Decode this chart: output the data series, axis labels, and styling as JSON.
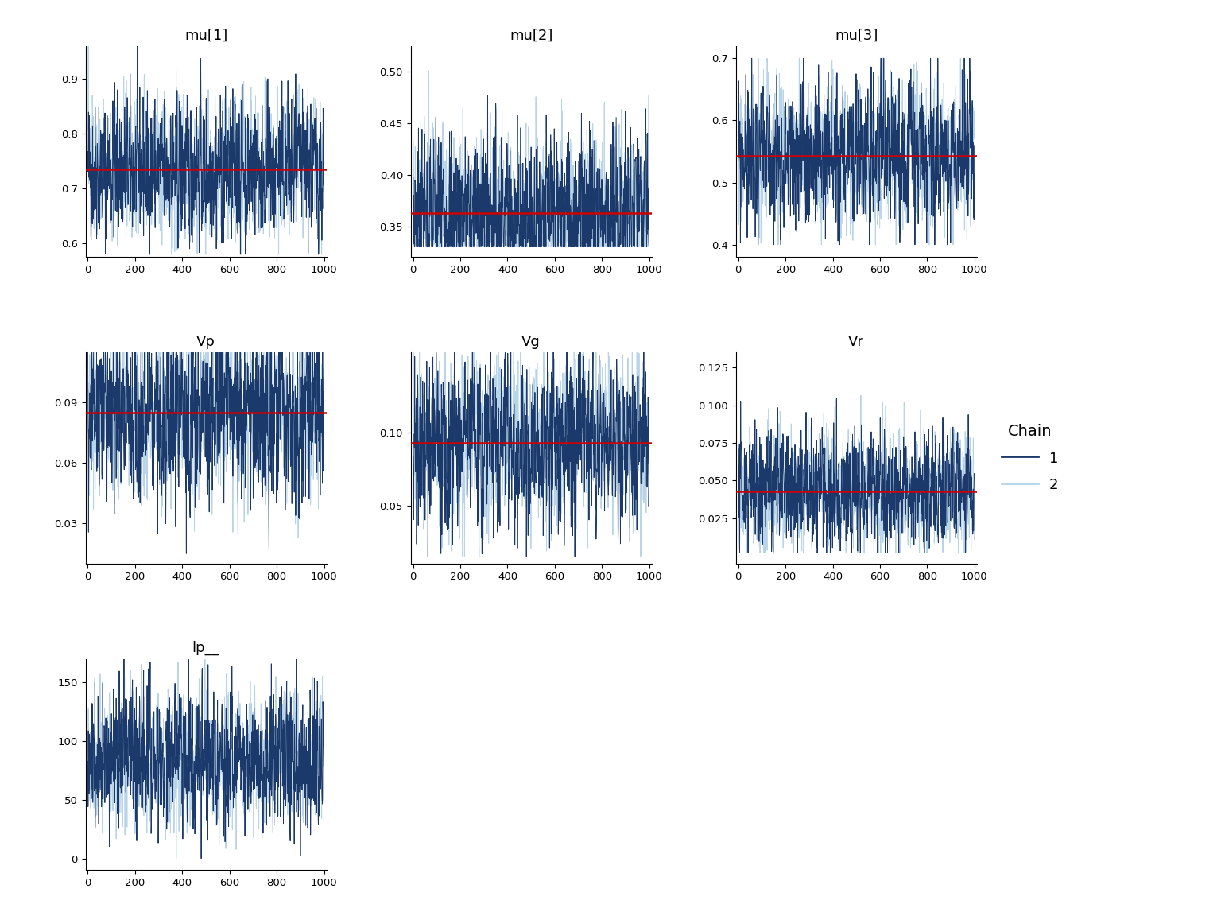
{
  "params": [
    "mu[1]",
    "mu[2]",
    "mu[3]",
    "Vp",
    "Vg",
    "Vr",
    "lp__"
  ],
  "n_iter": 1000,
  "red_means": {
    "mu[1]": 0.735,
    "mu[2]": 0.363,
    "mu[3]": 0.543,
    "Vp": 0.085,
    "Vg": 0.093,
    "Vr": 0.043,
    "lp__": null
  },
  "ylims": {
    "mu[1]": [
      0.575,
      0.96
    ],
    "mu[2]": [
      0.32,
      0.525
    ],
    "mu[3]": [
      0.38,
      0.72
    ],
    "Vp": [
      0.01,
      0.115
    ],
    "Vg": [
      0.01,
      0.155
    ],
    "Vr": [
      -0.005,
      0.135
    ],
    "lp__": [
      -10,
      170
    ]
  },
  "yticks": {
    "mu[1]": [
      0.6,
      0.7,
      0.8,
      0.9
    ],
    "mu[2]": [
      0.35,
      0.4,
      0.45,
      0.5
    ],
    "mu[3]": [
      0.4,
      0.5,
      0.6,
      0.7
    ],
    "Vp": [
      0.03,
      0.06,
      0.09
    ],
    "Vg": [
      0.05,
      0.1
    ],
    "Vr": [
      0.025,
      0.05,
      0.075,
      0.1,
      0.125
    ],
    "lp__": [
      0,
      50,
      100,
      150
    ]
  },
  "param_configs": {
    "mu[1]": {
      "mean": 0.735,
      "scale": 0.065,
      "low": 0.58,
      "high": 0.96
    },
    "mu[2]": {
      "mean": 0.363,
      "scale": 0.042,
      "low": 0.33,
      "high": 0.525
    },
    "mu[3]": {
      "mean": 0.543,
      "scale": 0.06,
      "low": 0.4,
      "high": 0.7
    },
    "Vp": {
      "mean": 0.085,
      "scale": 0.022,
      "low": 0.015,
      "high": 0.115
    },
    "Vg": {
      "mean": 0.093,
      "scale": 0.03,
      "low": 0.015,
      "high": 0.155
    },
    "Vr": {
      "mean": 0.043,
      "scale": 0.02,
      "low": 0.002,
      "high": 0.13
    },
    "lp__": {
      "mean": 85.0,
      "scale": 28.0,
      "low": 0.0,
      "high": 170.0
    }
  },
  "seeds_c1": {
    "mu[1]": 42,
    "mu[2]": 7,
    "mu[3]": 99,
    "Vp": 11,
    "Vg": 33,
    "Vr": 66,
    "lp__": 22
  },
  "seeds_c2": {
    "mu[1]": 137,
    "mu[2]": 23,
    "mu[3]": 55,
    "Vp": 77,
    "Vg": 88,
    "Vr": 44,
    "lp__": 111
  },
  "chain1_color": "#1B3A6B",
  "chain2_color": "#B8D4E8",
  "red_color": "#CC0000",
  "background_color": "#FFFFFF",
  "figsize": [
    15.36,
    11.52
  ],
  "dpi": 100
}
